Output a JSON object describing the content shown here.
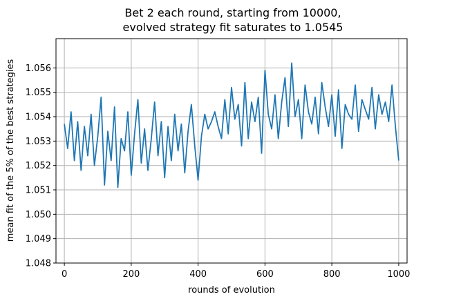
{
  "chart_data": {
    "type": "line",
    "title_line1": "Bet 2 each round, starting from 10000,",
    "title_line2": "evolved strategy fit saturates to 1.0545",
    "xlabel": "rounds of evolution",
    "ylabel": "mean fit of the 5% of the best strategies",
    "xlim": [
      -25,
      1025
    ],
    "ylim": [
      1.048,
      1.0572
    ],
    "xticks": [
      0,
      200,
      400,
      600,
      800,
      1000
    ],
    "xtick_labels": [
      "0",
      "200",
      "400",
      "600",
      "800",
      "1000"
    ],
    "yticks": [
      1.048,
      1.049,
      1.05,
      1.051,
      1.052,
      1.053,
      1.054,
      1.055,
      1.056
    ],
    "ytick_labels": [
      "1.048",
      "1.049",
      "1.050",
      "1.051",
      "1.052",
      "1.053",
      "1.054",
      "1.055",
      "1.056"
    ],
    "grid": true,
    "line_color": "#1f77b4",
    "series": [
      {
        "x": [
          0,
          10,
          20,
          30,
          40,
          50,
          60,
          70,
          80,
          90,
          100,
          110,
          120,
          130,
          140,
          150,
          160,
          170,
          180,
          190,
          200,
          210,
          220,
          230,
          240,
          250,
          260,
          270,
          280,
          290,
          300,
          310,
          320,
          330,
          340,
          350,
          360,
          370,
          380,
          390,
          400,
          410,
          420,
          430,
          440,
          450,
          460,
          470,
          480,
          490,
          500,
          510,
          520,
          530,
          540,
          550,
          560,
          570,
          580,
          590,
          600,
          610,
          620,
          630,
          640,
          650,
          660,
          670,
          680,
          690,
          700,
          710,
          720,
          730,
          740,
          750,
          760,
          770,
          780,
          790,
          800,
          810,
          820,
          830,
          840,
          850,
          860,
          870,
          880,
          890,
          900,
          910,
          920,
          930,
          940,
          950,
          960,
          970,
          980,
          990,
          1000
        ],
        "y": [
          1.0537,
          1.0527,
          1.0542,
          1.0522,
          1.0538,
          1.0518,
          1.0536,
          1.0524,
          1.0541,
          1.052,
          1.0532,
          1.0548,
          1.0512,
          1.0534,
          1.0522,
          1.0544,
          1.0511,
          1.0531,
          1.0526,
          1.0542,
          1.0516,
          1.0533,
          1.0547,
          1.0521,
          1.0535,
          1.0518,
          1.0531,
          1.0546,
          1.0524,
          1.0538,
          1.0515,
          1.0536,
          1.0522,
          1.0541,
          1.0526,
          1.0537,
          1.0517,
          1.0534,
          1.0545,
          1.0528,
          1.0514,
          1.0532,
          1.0541,
          1.0535,
          1.0538,
          1.0542,
          1.0536,
          1.0531,
          1.0547,
          1.0533,
          1.0552,
          1.0539,
          1.0545,
          1.0528,
          1.0554,
          1.0531,
          1.0546,
          1.0538,
          1.0548,
          1.0525,
          1.0559,
          1.0541,
          1.0535,
          1.0549,
          1.0531,
          1.0546,
          1.0556,
          1.0536,
          1.0562,
          1.054,
          1.0547,
          1.0531,
          1.0553,
          1.0542,
          1.0537,
          1.0548,
          1.0533,
          1.0554,
          1.0544,
          1.0536,
          1.0549,
          1.0532,
          1.0551,
          1.0527,
          1.0545,
          1.0541,
          1.0539,
          1.0553,
          1.0534,
          1.0547,
          1.0543,
          1.0539,
          1.0552,
          1.0535,
          1.0549,
          1.0541,
          1.0546,
          1.0538,
          1.0553,
          1.0536,
          1.0522
        ]
      }
    ]
  }
}
